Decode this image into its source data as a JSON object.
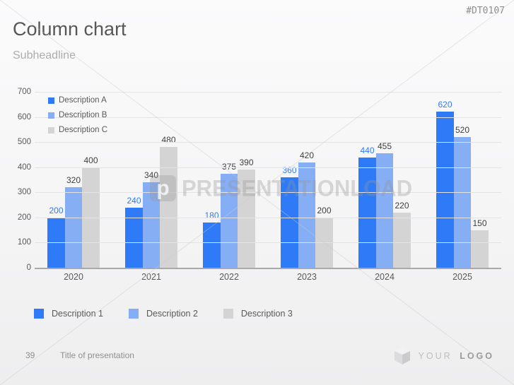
{
  "slide": {
    "title": "Column chart",
    "subheadline": "Subheadline",
    "code": "#DT0107",
    "page_number": "39",
    "footer_title": "Title of presentation",
    "logo_text_light": "YOUR",
    "logo_text_bold": "LOGO",
    "watermark_text": "PRESENTATIONLOAD",
    "watermark_logo_letter": "p"
  },
  "chart_data": {
    "type": "bar",
    "title": "",
    "xlabel": "",
    "ylabel": "",
    "categories": [
      "2020",
      "2021",
      "2022",
      "2023",
      "2024",
      "2025"
    ],
    "series": [
      {
        "name": "Description A",
        "color": "#2F7BF7",
        "label_color": "#2F7BF7",
        "values": [
          200,
          240,
          180,
          360,
          440,
          620
        ]
      },
      {
        "name": "Description B",
        "color": "#85AEF5",
        "label_color": "#3F3F3F",
        "values": [
          320,
          340,
          375,
          420,
          455,
          520
        ]
      },
      {
        "name": "Description C",
        "color": "#D4D4D4",
        "label_color": "#3F3F3F",
        "values": [
          400,
          480,
          390,
          200,
          220,
          150
        ]
      }
    ],
    "ylim": [
      0,
      700
    ],
    "ytick_step": 100,
    "grid": true,
    "legend_position": "top-left-inside",
    "bottom_legend": [
      {
        "label": "Description 1",
        "color": "#2F7BF7"
      },
      {
        "label": "Description 2",
        "color": "#85AEF5"
      },
      {
        "label": "Description 3",
        "color": "#D4D4D4"
      }
    ]
  }
}
